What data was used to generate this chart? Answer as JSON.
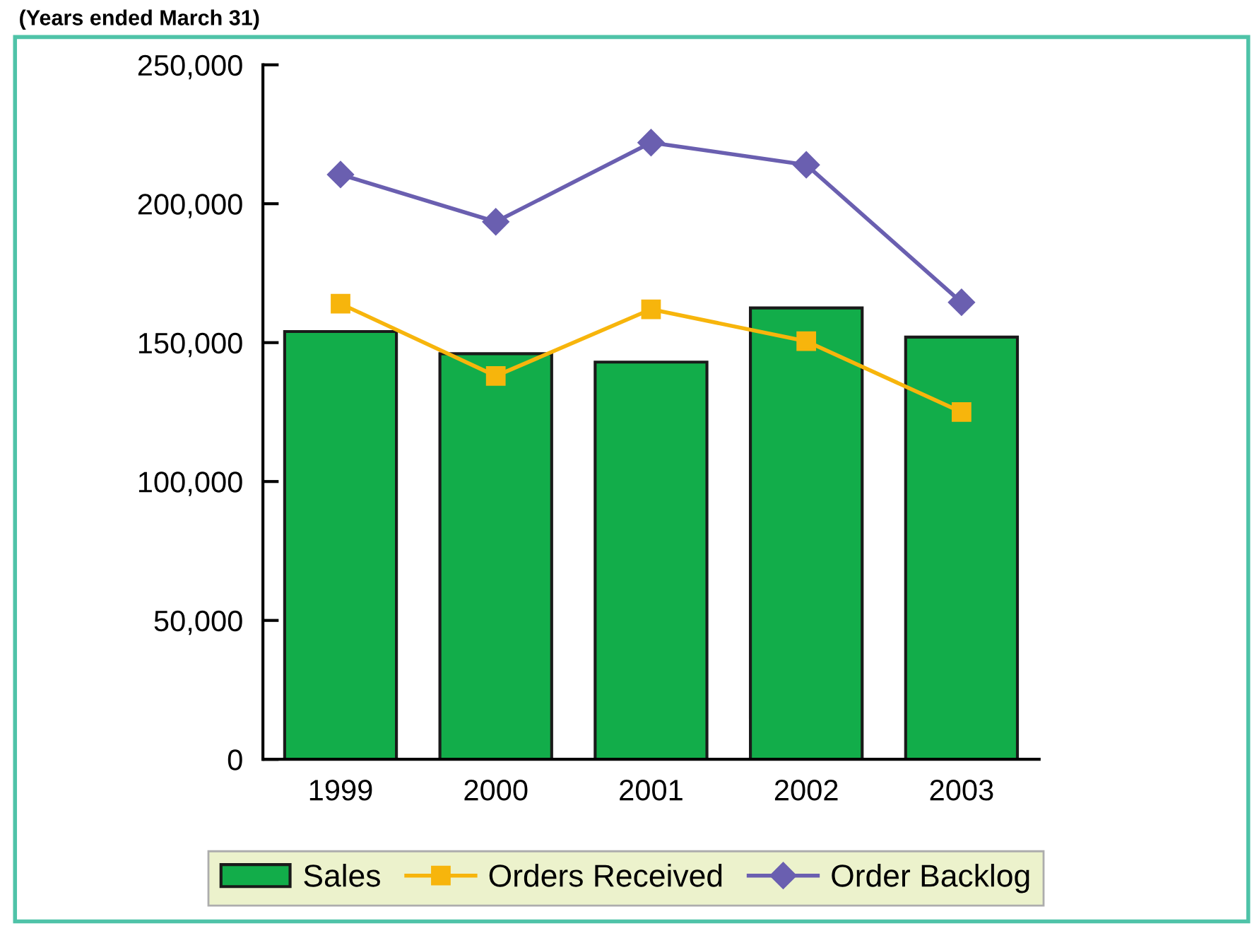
{
  "chart_data": {
    "type": "bar",
    "categories": [
      "1999",
      "2000",
      "2001",
      "2002",
      "2003"
    ],
    "series": [
      {
        "name": "Sales",
        "color": "#12ad4a",
        "values": [
          154000,
          146000,
          143000,
          162500,
          152000
        ]
      },
      {
        "name": "Orders Received",
        "type": "line",
        "color": "#f7b50c",
        "marker": "square",
        "values": [
          164000,
          138000,
          162000,
          150500,
          125000
        ]
      },
      {
        "name": "Order Backlog",
        "type": "line",
        "color": "#6a5fb0",
        "marker": "diamond",
        "values": [
          210500,
          193500,
          222000,
          214000,
          164500
        ]
      }
    ],
    "ylim": [
      0,
      250000
    ],
    "yticks": [
      {
        "value": 0,
        "label": "0"
      },
      {
        "value": 50000,
        "label": "50,000"
      },
      {
        "value": 100000,
        "label": "100,000"
      },
      {
        "value": 150000,
        "label": "150,000"
      },
      {
        "value": 200000,
        "label": "200,000"
      },
      {
        "value": 250000,
        "label": "250,000"
      }
    ],
    "grid": false,
    "legend": "bottom",
    "annotations": [
      "(Years ended March 31)"
    ]
  }
}
